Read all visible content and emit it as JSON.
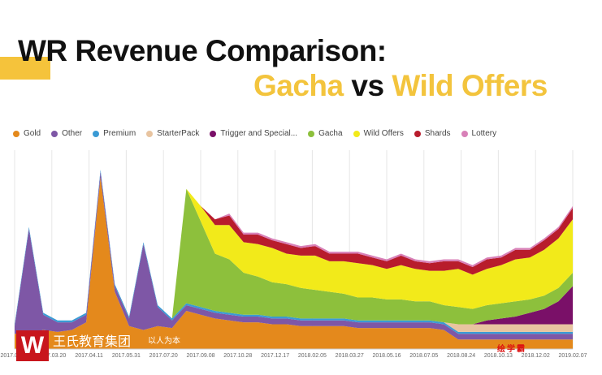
{
  "title": {
    "line1": "WR Revenue Comparison:",
    "gacha": "Gacha",
    "vs": "vs",
    "wild": "Wild Offers"
  },
  "watermark": {
    "logo": "W",
    "company": "王氏教育集团",
    "slogan": "以人为本",
    "brand": "绘学霸"
  },
  "chart_data": {
    "type": "area",
    "stacked": true,
    "title": "WR Revenue Comparison: Gacha vs Wild Offers",
    "xlabel": "",
    "ylabel": "",
    "ylim": [
      0,
      100
    ],
    "grid": "vertical",
    "legend_position": "top",
    "tick_labels": [
      "2017.01.29",
      "2017.03.20",
      "2017.04.11",
      "2017.05.31",
      "2017.07.20",
      "2017.09.08",
      "2017.10.28",
      "2017.12.17",
      "2018.02.05",
      "2018.03.27",
      "2018.05.16",
      "2018.07.05",
      "2018.08.24",
      "2018.10.13",
      "2018.12.02",
      "2019.02.07"
    ],
    "num_points": 40,
    "series": [
      {
        "name": "Gold",
        "color": "#e4891c",
        "values": [
          8,
          8,
          10,
          9,
          10,
          14,
          90,
          30,
          12,
          10,
          12,
          11,
          20,
          18,
          16,
          15,
          14,
          14,
          13,
          13,
          12,
          12,
          12,
          12,
          11,
          11,
          11,
          11,
          11,
          11,
          10,
          5,
          5,
          5,
          5,
          5,
          5,
          5,
          5,
          5
        ]
      },
      {
        "name": "Other",
        "color": "#7e57a6",
        "values": [
          4,
          55,
          8,
          5,
          4,
          4,
          3,
          3,
          4,
          45,
          10,
          4,
          3,
          3,
          3,
          3,
          3,
          3,
          3,
          3,
          3,
          3,
          3,
          3,
          3,
          3,
          3,
          3,
          3,
          3,
          3,
          3,
          3,
          3,
          3,
          3,
          3,
          3,
          3,
          3
        ]
      },
      {
        "name": "Premium",
        "color": "#3a9ad4",
        "values": [
          1,
          1,
          1,
          1,
          1,
          1,
          1,
          1,
          1,
          1,
          1,
          1,
          1,
          1,
          1,
          1,
          1,
          1,
          1,
          1,
          1,
          1,
          1,
          1,
          1,
          1,
          1,
          1,
          1,
          1,
          1,
          1,
          1,
          1,
          1,
          1,
          1,
          1,
          1,
          1
        ]
      },
      {
        "name": "StarterPack",
        "color": "#e8c4a0",
        "values": [
          0,
          0,
          0,
          0,
          0,
          0,
          0,
          0,
          0,
          0,
          0,
          0,
          0,
          0,
          0,
          0,
          0,
          0,
          0,
          0,
          0,
          0,
          0,
          0,
          0,
          0,
          0,
          0,
          0,
          0,
          0,
          4,
          4,
          4,
          4,
          4,
          4,
          4,
          4,
          4
        ]
      },
      {
        "name": "Trigger and Special...",
        "color": "#7a1068",
        "values": [
          0,
          0,
          0,
          0,
          0,
          0,
          0,
          0,
          0,
          0,
          0,
          0,
          0,
          0,
          0,
          0,
          0,
          0,
          0,
          0,
          0,
          0,
          0,
          0,
          0,
          0,
          0,
          0,
          0,
          0,
          0,
          0,
          0,
          2,
          3,
          4,
          6,
          8,
          12,
          20
        ]
      },
      {
        "name": "Gacha",
        "color": "#8dc03c",
        "values": [
          0,
          0,
          0,
          0,
          0,
          0,
          0,
          0,
          0,
          0,
          0,
          0,
          60,
          45,
          30,
          28,
          22,
          20,
          18,
          17,
          16,
          15,
          14,
          13,
          12,
          12,
          11,
          11,
          10,
          10,
          9,
          9,
          8,
          8,
          8,
          8,
          7,
          7,
          7,
          7
        ]
      },
      {
        "name": "Wild Offers",
        "color": "#f2ea1a",
        "values": [
          0,
          0,
          0,
          0,
          0,
          0,
          0,
          0,
          0,
          0,
          0,
          0,
          0,
          8,
          15,
          18,
          16,
          17,
          18,
          16,
          17,
          18,
          16,
          17,
          18,
          17,
          16,
          18,
          17,
          16,
          18,
          20,
          18,
          19,
          20,
          22,
          22,
          24,
          26,
          28
        ]
      },
      {
        "name": "Shards",
        "color": "#b81c2c",
        "values": [
          0,
          0,
          0,
          0,
          0,
          0,
          0,
          0,
          0,
          0,
          0,
          0,
          0,
          0,
          3,
          5,
          4,
          5,
          4,
          5,
          4,
          5,
          4,
          4,
          5,
          4,
          4,
          5,
          4,
          4,
          5,
          4,
          4,
          5,
          4,
          5,
          4,
          5,
          5,
          6
        ]
      },
      {
        "name": "Lottery",
        "color": "#d880b8",
        "values": [
          0,
          0,
          0,
          0,
          0,
          0,
          0,
          0,
          0,
          0,
          0,
          0,
          0,
          0,
          0,
          1,
          1,
          1,
          1,
          1,
          1,
          1,
          1,
          1,
          1,
          1,
          1,
          1,
          1,
          1,
          1,
          1,
          1,
          1,
          1,
          1,
          1,
          1,
          1,
          1
        ]
      }
    ]
  }
}
